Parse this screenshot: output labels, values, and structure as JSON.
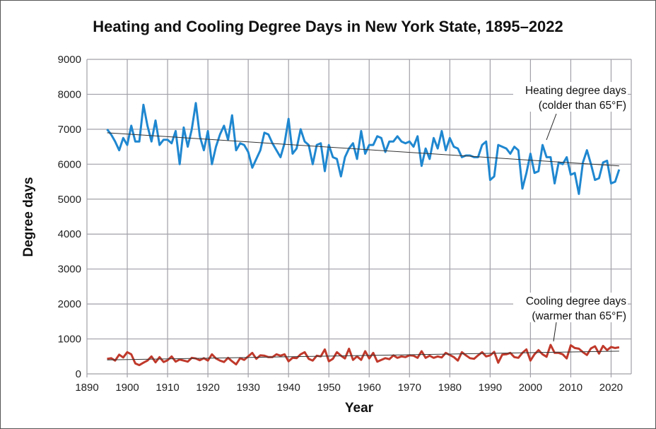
{
  "chart_data": {
    "type": "line",
    "title": "Heating and Cooling Degree Days in New York State, 1895–2022",
    "xlabel": "Year",
    "ylabel": "Degree days",
    "xlim": [
      1890,
      2025
    ],
    "ylim": [
      0,
      9000
    ],
    "xticks": [
      1890,
      1900,
      1910,
      1920,
      1930,
      1940,
      1950,
      1960,
      1970,
      1980,
      1990,
      2000,
      2010,
      2020
    ],
    "yticks": [
      0,
      1000,
      2000,
      3000,
      4000,
      5000,
      6000,
      7000,
      8000,
      9000
    ],
    "grid": true,
    "x_start": 1895,
    "series": [
      {
        "name": "Heating degree days",
        "color": "#1f87d0",
        "values": [
          7000,
          6850,
          6650,
          6400,
          6750,
          6550,
          7100,
          6650,
          6650,
          7700,
          7100,
          6650,
          7250,
          6550,
          6700,
          6700,
          6600,
          6950,
          6000,
          7050,
          6500,
          7000,
          7750,
          6800,
          6400,
          6950,
          6000,
          6500,
          6850,
          7100,
          6700,
          7400,
          6400,
          6600,
          6550,
          6350,
          5900,
          6150,
          6400,
          6900,
          6850,
          6600,
          6400,
          6200,
          6600,
          7300,
          6300,
          6450,
          7000,
          6650,
          6550,
          6000,
          6550,
          6600,
          5800,
          6550,
          6200,
          6150,
          5650,
          6200,
          6450,
          6600,
          6150,
          6950,
          6300,
          6550,
          6550,
          6800,
          6750,
          6350,
          6650,
          6650,
          6800,
          6650,
          6600,
          6650,
          6500,
          6800,
          5950,
          6450,
          6150,
          6750,
          6450,
          6950,
          6400,
          6750,
          6500,
          6450,
          6200,
          6250,
          6250,
          6200,
          6200,
          6550,
          6650,
          5550,
          5650,
          6550,
          6500,
          6450,
          6300,
          6500,
          6400,
          5300,
          5750,
          6300,
          5750,
          5800,
          6550,
          6200,
          6200,
          5450,
          6050,
          6000,
          6200,
          5700,
          5750,
          5150,
          6050,
          6400,
          6000,
          5550,
          5600,
          6050,
          6100,
          5450,
          5500,
          5850
        ],
        "trend": [
          6900,
          5950
        ]
      },
      {
        "name": "Cooling degree days",
        "color": "#c0392b",
        "values": [
          430,
          450,
          380,
          550,
          470,
          620,
          560,
          300,
          250,
          320,
          380,
          500,
          330,
          480,
          340,
          390,
          500,
          350,
          410,
          380,
          350,
          460,
          440,
          390,
          450,
          380,
          560,
          440,
          380,
          340,
          460,
          360,
          270,
          450,
          400,
          500,
          600,
          430,
          530,
          520,
          480,
          480,
          560,
          520,
          560,
          360,
          460,
          450,
          560,
          620,
          430,
          380,
          520,
          500,
          700,
          360,
          430,
          620,
          520,
          440,
          720,
          400,
          500,
          400,
          650,
          440,
          600,
          350,
          400,
          450,
          420,
          530,
          460,
          500,
          480,
          530,
          520,
          460,
          650,
          460,
          520,
          460,
          500,
          470,
          600,
          540,
          480,
          380,
          620,
          530,
          450,
          430,
          530,
          620,
          500,
          530,
          630,
          320,
          550,
          560,
          600,
          480,
          460,
          600,
          700,
          380,
          560,
          680,
          560,
          490,
          830,
          600,
          600,
          560,
          440,
          820,
          740,
          720,
          620,
          540,
          730,
          790,
          580,
          800,
          680,
          770,
          740,
          760
        ],
        "trend": [
          400,
          650
        ]
      }
    ],
    "annotations": {
      "heating_line1": "Heating degree days",
      "heating_line2": "(colder than 65°F)",
      "cooling_line1": "Cooling degree days",
      "cooling_line2": "(warmer than 65°F)"
    },
    "trend_color": "#333333",
    "grid_color": "#a0a0a8"
  }
}
